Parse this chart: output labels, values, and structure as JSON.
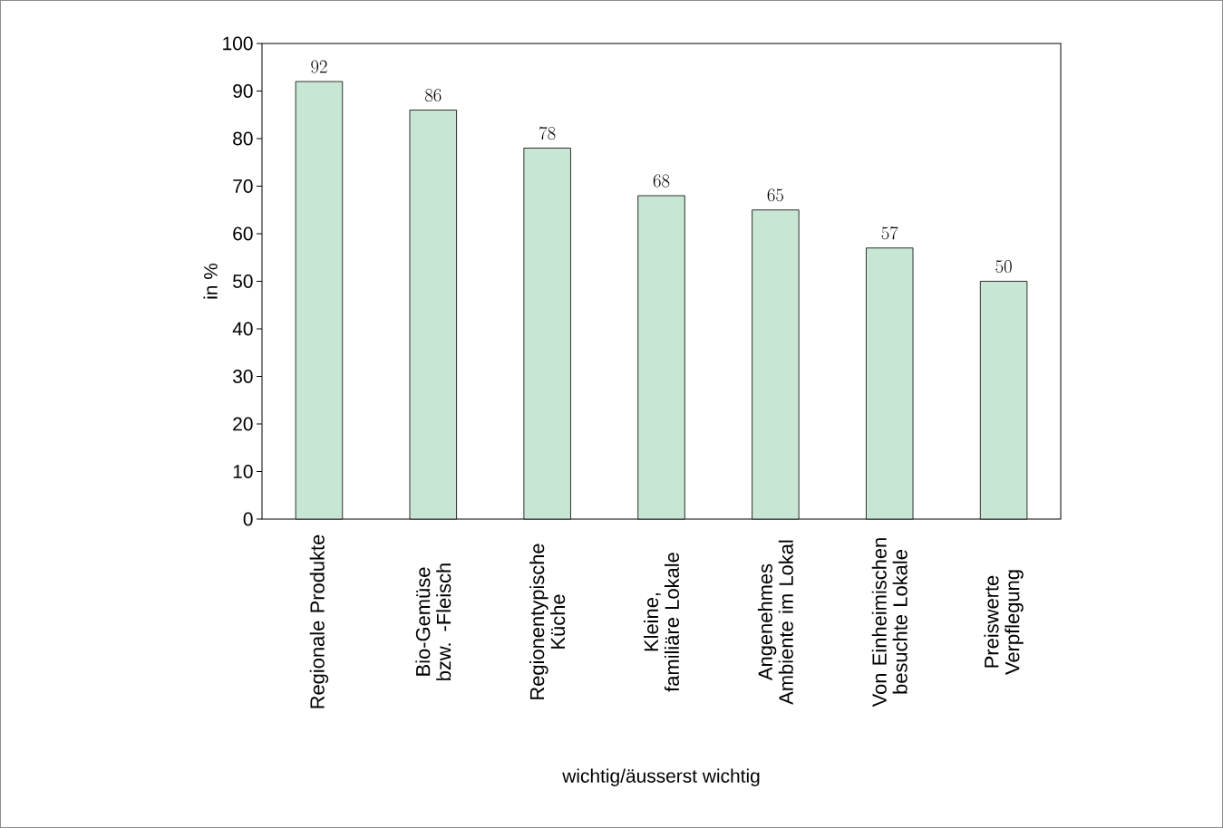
{
  "chart_data": {
    "type": "bar",
    "xlabel": "wichtig/äusserst wichtig",
    "ylabel": "in %",
    "categories": [
      "Regionale Produkte",
      "Bio-Gemüse bzw. -Fleisch",
      "Regionentypische Küche",
      "Kleine, familiäre Lokale",
      "Angenehmes Ambiente im Lokal",
      "Von Einheimischen besuchte Lokale",
      "Preiswerte Verpflegung"
    ],
    "values": [
      92,
      86,
      78,
      68,
      65,
      57,
      50
    ],
    "color": "#c8e6d4",
    "data_labels": true,
    "ylim": [
      0,
      100
    ],
    "yticks": [
      0,
      10,
      20,
      30,
      40,
      50,
      60,
      70,
      80,
      90,
      100
    ],
    "grid": false
  }
}
